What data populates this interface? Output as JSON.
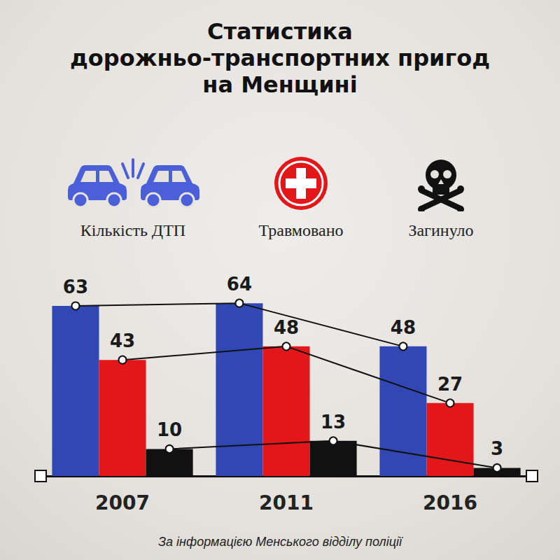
{
  "chart_data": {
    "type": "bar",
    "title": "Статистика дорожньо-транспортних пригод на Менщині",
    "categories": [
      "2007",
      "2011",
      "2016"
    ],
    "series": [
      {
        "name": "Кількість ДТП",
        "color": "#3148b4",
        "values": [
          63,
          64,
          48
        ]
      },
      {
        "name": "Травмовано",
        "color": "#e3161a",
        "values": [
          43,
          48,
          27
        ]
      },
      {
        "name": "Загинуло",
        "color": "#111111",
        "values": [
          10,
          13,
          3
        ]
      }
    ],
    "ylim": [
      0,
      70
    ],
    "grid": false,
    "legend": "top",
    "data_labels": true,
    "tick_labels": "x",
    "annotation": "За інформацією Менського відділу поліції"
  }
}
